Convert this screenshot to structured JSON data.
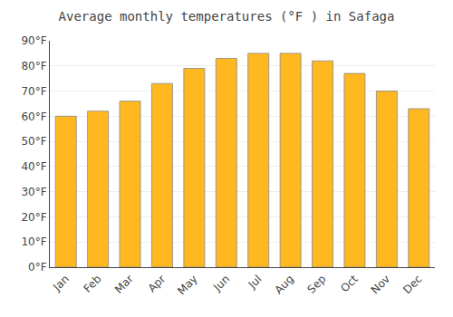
{
  "chart_data": {
    "type": "bar",
    "title": "Average monthly temperatures (°F ) in Safaga",
    "categories": [
      "Jan",
      "Feb",
      "Mar",
      "Apr",
      "May",
      "Jun",
      "Jul",
      "Aug",
      "Sep",
      "Oct",
      "Nov",
      "Dec"
    ],
    "values": [
      60,
      62,
      66,
      73,
      79,
      83,
      85,
      85,
      82,
      77,
      70,
      63
    ],
    "color": "#FFB820",
    "ylim": [
      0,
      90
    ],
    "yticks": [
      {
        "value": 0,
        "label": "0°F"
      },
      {
        "value": 10,
        "label": "10°F"
      },
      {
        "value": 20,
        "label": "20°F"
      },
      {
        "value": 30,
        "label": "30°F"
      },
      {
        "value": 40,
        "label": "40°F"
      },
      {
        "value": 50,
        "label": "50°F"
      },
      {
        "value": 60,
        "label": "60°F"
      },
      {
        "value": 70,
        "label": "70°F"
      },
      {
        "value": 80,
        "label": "80°F"
      },
      {
        "value": 90,
        "label": "90°F"
      }
    ],
    "grid": true
  }
}
